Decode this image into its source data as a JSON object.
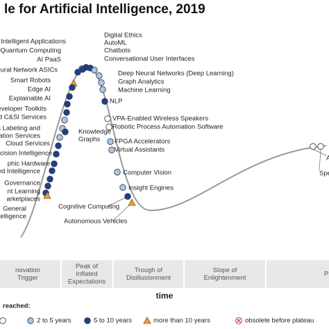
{
  "header": {
    "title": "le for Artificial Intelligence, 2019"
  },
  "nodes": [
    {
      "label": [
        "Intelligent Applications"
      ],
      "kind": "light"
    },
    {
      "label": [
        "Quantum Computing"
      ],
      "kind": "triangle"
    },
    {
      "label": [
        "AI PaaS"
      ],
      "kind": "dark"
    },
    {
      "label": [
        "eural Network ASICs"
      ],
      "kind": "dark"
    },
    {
      "label": [
        "Smart Robots"
      ],
      "kind": "dark"
    },
    {
      "label": [
        "Edge AI"
      ],
      "kind": "dark"
    },
    {
      "label": [
        "Explainable AI"
      ],
      "kind": "dark"
    },
    {
      "label": [
        "eveloper Toolkits"
      ],
      "kind": "light"
    },
    {
      "label": [
        "d C&SI Services"
      ],
      "kind": "light"
    },
    {
      "label": [
        "a Labeling and",
        "otation Services"
      ],
      "kind": "light"
    },
    {
      "label": [
        "Cloud Services"
      ],
      "kind": "dark"
    },
    {
      "label": [
        "ecision Intelligence"
      ],
      "kind": "dark"
    },
    {
      "label": [
        "phic Hardware"
      ],
      "kind": "dark"
    },
    {
      "label": [
        "ed Intelligence"
      ],
      "kind": "dark"
    },
    {
      "label": [
        "Governance"
      ],
      "kind": "dark"
    },
    {
      "label": [
        "nt Learning"
      ],
      "kind": "dark"
    },
    {
      "label": [
        "arketplaces"
      ],
      "kind": "dark"
    },
    {
      "label": [
        "General",
        "ntelligence"
      ],
      "kind": "triangle"
    },
    {
      "label": [
        "Digital Ethics"
      ],
      "kind": "dark"
    },
    {
      "label": [
        "AutoML"
      ],
      "kind": "dark"
    },
    {
      "label": [
        "Chatbots"
      ],
      "kind": "light"
    },
    {
      "label": [
        "Conversational User Interfaces"
      ],
      "kind": "dark"
    },
    {
      "label": [
        "Deep Neural Networks (Deep Learning)"
      ],
      "kind": "light"
    },
    {
      "label": [
        "Graph Analytics"
      ],
      "kind": "light"
    },
    {
      "label": [
        "Machine Learning"
      ],
      "kind": "light"
    },
    {
      "label": [
        "NLP"
      ],
      "kind": "dark"
    },
    {
      "label": [
        "VPA-Enabled Wireless Speakers"
      ],
      "kind": "white"
    },
    {
      "label": [
        "Robotic Process Automation Software"
      ],
      "kind": "white"
    },
    {
      "label": [
        "FPGA Accelerators"
      ],
      "kind": "light"
    },
    {
      "label": [
        "Virtual Assistants"
      ],
      "kind": "light"
    },
    {
      "label": [
        "Computer Vision"
      ],
      "kind": "light"
    },
    {
      "label": [
        "Insight Engines"
      ],
      "kind": "light"
    },
    {
      "label": [
        "Knowledge",
        "Graphs"
      ],
      "kind": "dark"
    },
    {
      "label": [
        "Cognitive Computing"
      ],
      "kind": "dark"
    },
    {
      "label": [
        "Autonomous Vehicles"
      ],
      "kind": "triangle"
    },
    {
      "label": [
        "A"
      ],
      "kind": "white"
    },
    {
      "label": [
        "Spe"
      ],
      "kind": "white"
    }
  ],
  "phases": [
    [
      "novation",
      "Trigger"
    ],
    [
      "Peak of",
      "Inflated",
      "Expectations"
    ],
    [
      "Trough of",
      "Disillusionment"
    ],
    [
      "Slope of",
      "Enlightenment"
    ],
    [
      "P"
    ]
  ],
  "axis_label": "time",
  "legend": {
    "heading": "reached:",
    "items": [
      {
        "label": "2 to 5 years",
        "kind": "light"
      },
      {
        "label": "5 to 10 years",
        "kind": "dark"
      },
      {
        "label": "more than 10 years",
        "kind": "triangle"
      },
      {
        "label": "obsolete before plateau",
        "kind": "obsolete"
      }
    ]
  }
}
